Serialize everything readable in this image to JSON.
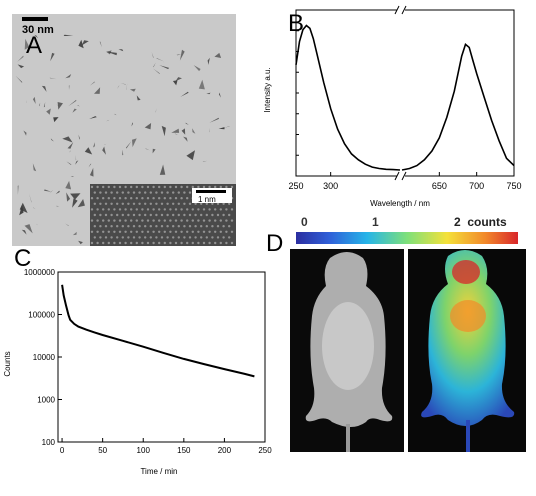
{
  "panels": {
    "A": {
      "letter": "A",
      "scale_bar_label": "30 nm",
      "inset_scale_bar_label": "1 nm"
    },
    "B": {
      "letter": "B",
      "ylabel": "Intensity a.u.",
      "xlabel": "Wavelength / nm",
      "xticks_left": [
        "250",
        "300"
      ],
      "xticks_right": [
        "650",
        "700",
        "750"
      ]
    },
    "C": {
      "letter": "C",
      "ylabel": "Counts",
      "xlabel": "Time / min",
      "xticks": [
        "0",
        "50",
        "100",
        "150",
        "200",
        "250"
      ],
      "yticks": [
        "100",
        "1000",
        "10000",
        "100000",
        "1000000"
      ]
    },
    "D": {
      "letter": "D",
      "colorbar_ticks": [
        "0",
        "1"
      ],
      "colorbar_unit_label": "2  counts"
    }
  },
  "colors": {
    "curve": "#000000",
    "tem_background": "#c9c9c9",
    "particle": "#3a3a3a",
    "lattice_background": "#4a4a4a",
    "mouse_background": "#0a0a0a",
    "mouse_body": "#bdbdbd"
  },
  "chart_data": [
    {
      "panel": "B",
      "type": "line",
      "x_axis": "wavelength (nm), broken axis",
      "ylabel": "Intensity a.u.",
      "xlabel": "Wavelength / nm",
      "x_segments": [
        [
          250,
          400
        ],
        [
          600,
          750
        ]
      ],
      "series": [
        {
          "x": [
            250,
            255,
            260,
            265,
            270,
            275,
            280,
            290,
            300,
            310,
            320,
            330,
            340,
            350,
            360,
            370,
            380,
            390,
            400
          ],
          "y": [
            0.72,
            0.88,
            0.96,
            0.99,
            0.97,
            0.9,
            0.8,
            0.6,
            0.42,
            0.28,
            0.18,
            0.11,
            0.07,
            0.04,
            0.02,
            0.01,
            0.005,
            0.003,
            0.0
          ]
        },
        {
          "x": [
            600,
            610,
            620,
            630,
            640,
            650,
            660,
            670,
            680,
            685,
            690,
            695,
            700,
            710,
            720,
            730,
            740,
            750
          ],
          "y": [
            0.0,
            0.01,
            0.03,
            0.07,
            0.13,
            0.22,
            0.36,
            0.54,
            0.78,
            0.86,
            0.84,
            0.75,
            0.66,
            0.5,
            0.34,
            0.2,
            0.08,
            0.03
          ]
        }
      ]
    },
    {
      "panel": "C",
      "type": "line",
      "xlabel": "Time / min",
      "ylabel": "Counts",
      "xlim": [
        -5,
        250
      ],
      "ylim": [
        100,
        1000000
      ],
      "y_scale": "log",
      "series": [
        {
          "x": [
            0,
            2,
            5,
            8,
            10,
            15,
            20,
            30,
            40,
            50,
            75,
            100,
            125,
            150,
            175,
            200,
            225,
            237
          ],
          "y": [
            500000,
            280000,
            160000,
            95000,
            75000,
            60000,
            52000,
            44000,
            38000,
            33000,
            24000,
            17500,
            12500,
            9000,
            6800,
            5200,
            4000,
            3500
          ]
        }
      ]
    }
  ]
}
